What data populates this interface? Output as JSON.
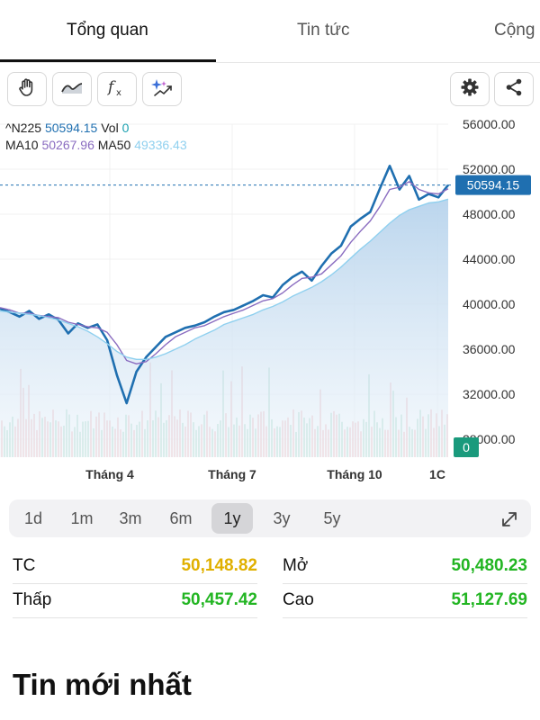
{
  "tabs": [
    {
      "label": "Tổng quan",
      "active": true
    },
    {
      "label": "Tin tức",
      "active": false
    },
    {
      "label": "Cộng",
      "active": false
    }
  ],
  "toolbar": {
    "left_icons": [
      "hand-icon",
      "wave-line-icon",
      "fx-icon",
      "sparkle-chart-icon"
    ],
    "right_icons": [
      "gear-icon",
      "share-icon"
    ]
  },
  "ticker": {
    "symbol": "^N225",
    "price": "50594.15",
    "vol_label": "Vol",
    "vol_value": "0",
    "ma10_label": "MA10",
    "ma10_value": "50267.96",
    "ma50_label": "MA50",
    "ma50_value": "49336.43",
    "colors": {
      "price": "#1f6fb0",
      "ma10": "#8a6cc0",
      "ma50": "#8fd0ef",
      "vol": "#1aa0b0"
    }
  },
  "chart_data": {
    "type": "line",
    "y_ticks": [
      "56000.00",
      "52000.00",
      "48000.00",
      "44000.00",
      "40000.00",
      "36000.00",
      "32000.00",
      "28000.00"
    ],
    "ylim": [
      28000,
      56000
    ],
    "x_labels": [
      "Tháng 4",
      "Tháng 7",
      "Tháng 10",
      "1C"
    ],
    "last_price_label": "50594.15",
    "volume_label": "0",
    "series": [
      {
        "values": [
          39600,
          39300,
          38900,
          39400,
          38700,
          39100,
          38600,
          37400,
          38300,
          37900,
          38200,
          36800,
          33700,
          31200,
          34000,
          35300,
          36200,
          37100,
          37500,
          37900,
          38100,
          38400,
          38900,
          39300,
          39500,
          39900,
          40300,
          40800,
          40600,
          41700,
          42400,
          42900,
          42100,
          43400,
          44500,
          45200,
          46900,
          47600,
          48200,
          50300,
          52300,
          50200,
          51400,
          49300,
          49800,
          49500,
          50594
        ]
      },
      {
        "values": [
          39700,
          39500,
          39200,
          39200,
          39000,
          38900,
          38800,
          38400,
          38200,
          38000,
          37900,
          37500,
          36400,
          35000,
          34700,
          34900,
          35600,
          36400,
          37100,
          37500,
          37900,
          38100,
          38500,
          38900,
          39200,
          39500,
          39900,
          40300,
          40500,
          41000,
          41700,
          42300,
          42400,
          42700,
          43500,
          44300,
          45500,
          46500,
          47400,
          48700,
          50200,
          50400,
          50900,
          50200,
          49900,
          49800,
          50268
        ]
      },
      {
        "values": [
          39400,
          39300,
          39200,
          39100,
          39000,
          38800,
          38600,
          38300,
          38000,
          37600,
          37100,
          36500,
          35800,
          35300,
          35100,
          35100,
          35300,
          35600,
          36000,
          36400,
          36900,
          37300,
          37700,
          38200,
          38500,
          38800,
          39100,
          39500,
          39800,
          40200,
          40700,
          41100,
          41500,
          42000,
          42600,
          43300,
          44100,
          44900,
          45600,
          46400,
          47200,
          47900,
          48400,
          48700,
          49000,
          49100,
          49336
        ]
      }
    ]
  },
  "ranges": [
    {
      "label": "1d",
      "active": false
    },
    {
      "label": "1m",
      "active": false
    },
    {
      "label": "3m",
      "active": false
    },
    {
      "label": "6m",
      "active": false
    },
    {
      "label": "1y",
      "active": true
    },
    {
      "label": "3y",
      "active": false
    },
    {
      "label": "5y",
      "active": false
    }
  ],
  "stats": {
    "tc_label": "TC",
    "tc_value": "50,148.82",
    "mo_label": "Mở",
    "mo_value": "50,480.23",
    "thap_label": "Thấp",
    "thap_value": "50,457.42",
    "cao_label": "Cao",
    "cao_value": "51,127.69",
    "colors": {
      "ref": "#e0b000",
      "up": "#22b522"
    }
  },
  "news": {
    "title": "Tin mới nhất"
  }
}
